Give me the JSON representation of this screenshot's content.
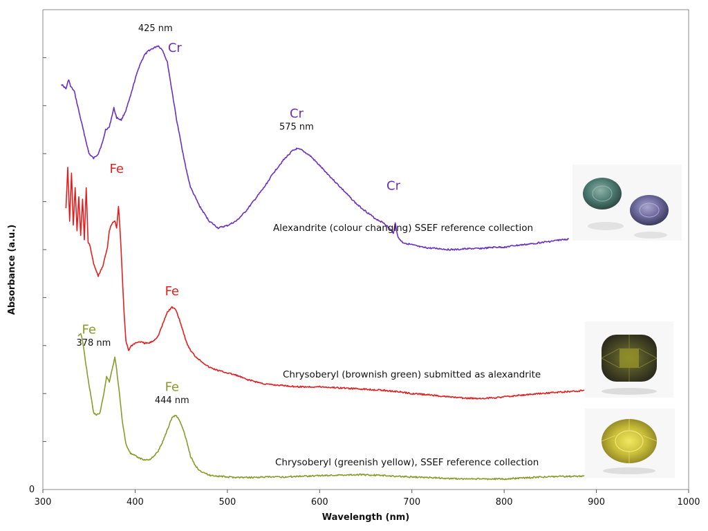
{
  "chart_data": {
    "type": "line",
    "title": "",
    "xlabel": "Wavelength (nm)",
    "ylabel": "Absorbance (a.u.)",
    "xlim": [
      300,
      1000
    ],
    "ylim": [
      0,
      10
    ],
    "x_ticks": [
      300,
      400,
      500,
      600,
      700,
      800,
      900,
      1000
    ],
    "y_ticks": [
      1,
      2,
      3,
      4,
      5,
      6,
      7,
      8,
      9
    ],
    "y_zero_label": "0",
    "grid": false,
    "colors": {
      "alexandrite": "#6a2fc0",
      "brownish": "#e41e1e",
      "greenish": "#8a9a2a"
    },
    "series": [
      {
        "id": "alexandrite",
        "label": "Alexandrite (colour changing) SSEF reference collection",
        "color": "#6a2fc0",
        "points": [
          [
            320,
            8.45
          ],
          [
            325,
            8.35
          ],
          [
            328,
            8.55
          ],
          [
            330,
            8.4
          ],
          [
            334,
            8.3
          ],
          [
            340,
            7.8
          ],
          [
            345,
            7.4
          ],
          [
            350,
            7.0
          ],
          [
            355,
            6.9
          ],
          [
            360,
            7.0
          ],
          [
            365,
            7.25
          ],
          [
            368,
            7.5
          ],
          [
            372,
            7.55
          ],
          [
            375,
            7.8
          ],
          [
            377,
            7.95
          ],
          [
            380,
            7.75
          ],
          [
            385,
            7.7
          ],
          [
            390,
            7.9
          ],
          [
            395,
            8.2
          ],
          [
            400,
            8.55
          ],
          [
            405,
            8.85
          ],
          [
            410,
            9.05
          ],
          [
            415,
            9.15
          ],
          [
            420,
            9.2
          ],
          [
            425,
            9.25
          ],
          [
            430,
            9.15
          ],
          [
            435,
            8.9
          ],
          [
            440,
            8.3
          ],
          [
            445,
            7.7
          ],
          [
            450,
            7.2
          ],
          [
            455,
            6.7
          ],
          [
            460,
            6.3
          ],
          [
            470,
            5.9
          ],
          [
            480,
            5.6
          ],
          [
            490,
            5.45
          ],
          [
            500,
            5.5
          ],
          [
            510,
            5.6
          ],
          [
            520,
            5.8
          ],
          [
            530,
            6.05
          ],
          [
            540,
            6.3
          ],
          [
            550,
            6.6
          ],
          [
            560,
            6.85
          ],
          [
            570,
            7.05
          ],
          [
            575,
            7.1
          ],
          [
            580,
            7.08
          ],
          [
            590,
            6.95
          ],
          [
            600,
            6.75
          ],
          [
            610,
            6.55
          ],
          [
            620,
            6.35
          ],
          [
            630,
            6.15
          ],
          [
            640,
            5.95
          ],
          [
            650,
            5.8
          ],
          [
            660,
            5.65
          ],
          [
            670,
            5.55
          ],
          [
            675,
            5.45
          ],
          [
            680,
            5.35
          ],
          [
            682,
            5.55
          ],
          [
            685,
            5.25
          ],
          [
            690,
            5.15
          ],
          [
            700,
            5.1
          ],
          [
            710,
            5.05
          ],
          [
            720,
            5.03
          ],
          [
            730,
            5.02
          ],
          [
            740,
            5.0
          ],
          [
            750,
            5.0
          ],
          [
            760,
            5.02
          ],
          [
            770,
            5.02
          ],
          [
            780,
            5.03
          ],
          [
            790,
            5.05
          ],
          [
            800,
            5.05
          ],
          [
            810,
            5.08
          ],
          [
            820,
            5.1
          ],
          [
            830,
            5.12
          ],
          [
            840,
            5.15
          ],
          [
            850,
            5.17
          ],
          [
            860,
            5.2
          ],
          [
            870,
            5.22
          ]
        ]
      },
      {
        "id": "brownish",
        "label": "Chrysoberyl (brownish green)   submitted as alexandrite",
        "color": "#e41e1e",
        "points": [
          [
            325,
            5.85
          ],
          [
            327,
            6.7
          ],
          [
            329,
            5.6
          ],
          [
            331,
            6.6
          ],
          [
            333,
            5.5
          ],
          [
            335,
            6.3
          ],
          [
            337,
            5.4
          ],
          [
            339,
            6.1
          ],
          [
            341,
            5.3
          ],
          [
            343,
            6.05
          ],
          [
            345,
            5.2
          ],
          [
            347,
            6.3
          ],
          [
            349,
            5.15
          ],
          [
            351,
            5.1
          ],
          [
            355,
            4.7
          ],
          [
            360,
            4.45
          ],
          [
            365,
            4.65
          ],
          [
            370,
            5.05
          ],
          [
            372,
            5.4
          ],
          [
            375,
            5.55
          ],
          [
            378,
            5.6
          ],
          [
            380,
            5.45
          ],
          [
            382,
            5.9
          ],
          [
            384,
            5.3
          ],
          [
            386,
            4.5
          ],
          [
            388,
            3.7
          ],
          [
            390,
            3.1
          ],
          [
            393,
            2.9
          ],
          [
            396,
            3.0
          ],
          [
            400,
            3.05
          ],
          [
            405,
            3.08
          ],
          [
            410,
            3.05
          ],
          [
            415,
            3.05
          ],
          [
            420,
            3.1
          ],
          [
            425,
            3.2
          ],
          [
            430,
            3.45
          ],
          [
            435,
            3.7
          ],
          [
            440,
            3.8
          ],
          [
            444,
            3.75
          ],
          [
            448,
            3.55
          ],
          [
            452,
            3.3
          ],
          [
            456,
            3.05
          ],
          [
            460,
            2.9
          ],
          [
            465,
            2.78
          ],
          [
            470,
            2.7
          ],
          [
            480,
            2.55
          ],
          [
            490,
            2.48
          ],
          [
            500,
            2.43
          ],
          [
            510,
            2.38
          ],
          [
            520,
            2.3
          ],
          [
            530,
            2.25
          ],
          [
            540,
            2.2
          ],
          [
            550,
            2.18
          ],
          [
            560,
            2.17
          ],
          [
            570,
            2.15
          ],
          [
            580,
            2.14
          ],
          [
            600,
            2.14
          ],
          [
            620,
            2.12
          ],
          [
            640,
            2.1
          ],
          [
            660,
            2.08
          ],
          [
            680,
            2.05
          ],
          [
            700,
            2.0
          ],
          [
            720,
            1.97
          ],
          [
            740,
            1.93
          ],
          [
            760,
            1.9
          ],
          [
            770,
            1.9
          ],
          [
            780,
            1.9
          ],
          [
            800,
            1.93
          ],
          [
            820,
            1.97
          ],
          [
            840,
            2.0
          ],
          [
            860,
            2.03
          ],
          [
            880,
            2.05
          ],
          [
            887,
            2.07
          ]
        ]
      },
      {
        "id": "greenish",
        "label": "Chrysoberyl (greenish yellow), SSEF reference collection",
        "color": "#8a9a2a",
        "points": [
          [
            338,
            3.2
          ],
          [
            341,
            3.25
          ],
          [
            343,
            3.1
          ],
          [
            346,
            2.7
          ],
          [
            349,
            2.3
          ],
          [
            352,
            1.95
          ],
          [
            355,
            1.6
          ],
          [
            358,
            1.55
          ],
          [
            362,
            1.6
          ],
          [
            366,
            2.0
          ],
          [
            369,
            2.35
          ],
          [
            372,
            2.25
          ],
          [
            375,
            2.5
          ],
          [
            378,
            2.75
          ],
          [
            380,
            2.5
          ],
          [
            383,
            2.0
          ],
          [
            386,
            1.45
          ],
          [
            390,
            0.95
          ],
          [
            395,
            0.75
          ],
          [
            400,
            0.7
          ],
          [
            405,
            0.65
          ],
          [
            410,
            0.62
          ],
          [
            415,
            0.62
          ],
          [
            420,
            0.68
          ],
          [
            425,
            0.8
          ],
          [
            430,
            1.0
          ],
          [
            435,
            1.25
          ],
          [
            440,
            1.5
          ],
          [
            444,
            1.55
          ],
          [
            448,
            1.45
          ],
          [
            452,
            1.25
          ],
          [
            456,
            1.0
          ],
          [
            460,
            0.7
          ],
          [
            465,
            0.5
          ],
          [
            470,
            0.4
          ],
          [
            480,
            0.3
          ],
          [
            490,
            0.28
          ],
          [
            500,
            0.26
          ],
          [
            520,
            0.25
          ],
          [
            540,
            0.26
          ],
          [
            560,
            0.26
          ],
          [
            580,
            0.28
          ],
          [
            600,
            0.29
          ],
          [
            620,
            0.3
          ],
          [
            640,
            0.31
          ],
          [
            660,
            0.3
          ],
          [
            680,
            0.28
          ],
          [
            700,
            0.26
          ],
          [
            720,
            0.25
          ],
          [
            740,
            0.23
          ],
          [
            760,
            0.22
          ],
          [
            780,
            0.22
          ],
          [
            800,
            0.22
          ],
          [
            820,
            0.24
          ],
          [
            840,
            0.26
          ],
          [
            860,
            0.27
          ],
          [
            887,
            0.28
          ]
        ]
      }
    ],
    "annotations": [
      {
        "id": "ann-cr-425-nm",
        "text": "425 nm",
        "kind": "nm",
        "color": "#111111",
        "x": 422,
        "y": 9.55
      },
      {
        "id": "ann-cr-425-ion",
        "text": "Cr",
        "kind": "ion",
        "color": "#6a2fc0",
        "x": 443,
        "y": 9.12
      },
      {
        "id": "ann-cr-575-ion",
        "text": "Cr",
        "kind": "ion",
        "color": "#6a2fc0",
        "x": 575,
        "y": 7.75
      },
      {
        "id": "ann-cr-575-nm",
        "text": "575 nm",
        "kind": "nm",
        "color": "#111111",
        "x": 575,
        "y": 7.5
      },
      {
        "id": "ann-cr-680-ion",
        "text": "Cr",
        "kind": "ion",
        "color": "#6a2fc0",
        "x": 680,
        "y": 6.25
      },
      {
        "id": "ann-fe-red-380",
        "text": "Fe",
        "kind": "ion",
        "color": "#e41e1e",
        "x": 380,
        "y": 6.6
      },
      {
        "id": "ann-fe-red-444",
        "text": "Fe",
        "kind": "ion",
        "color": "#e41e1e",
        "x": 440,
        "y": 4.05
      },
      {
        "id": "ann-fe-green-378-ion",
        "text": "Fe",
        "kind": "ion",
        "color": "#8a9a2a",
        "x": 350,
        "y": 3.25
      },
      {
        "id": "ann-fe-green-378-nm",
        "text": "378 nm",
        "kind": "nm",
        "color": "#111111",
        "x": 355,
        "y": 3.0
      },
      {
        "id": "ann-fe-green-444-ion",
        "text": "Fe",
        "kind": "ion",
        "color": "#8a9a2a",
        "x": 440,
        "y": 2.05
      },
      {
        "id": "ann-fe-green-444-nm",
        "text": "444 nm",
        "kind": "nm",
        "color": "#111111",
        "x": 440,
        "y": 1.8
      }
    ]
  },
  "gem_images": [
    {
      "id": "alexandrite-pair-image",
      "description_icon": "alexandrite-gems-icon",
      "colors": [
        "#4a7a70",
        "#6a6a9a"
      ]
    },
    {
      "id": "brownish-green-gem-image",
      "description_icon": "cushion-gem-icon",
      "colors": [
        "#4a4a30",
        "#7a7a2a"
      ]
    },
    {
      "id": "greenish-yellow-gem-image",
      "description_icon": "oval-gem-icon",
      "colors": [
        "#c8c030",
        "#8a8a20"
      ]
    }
  ]
}
